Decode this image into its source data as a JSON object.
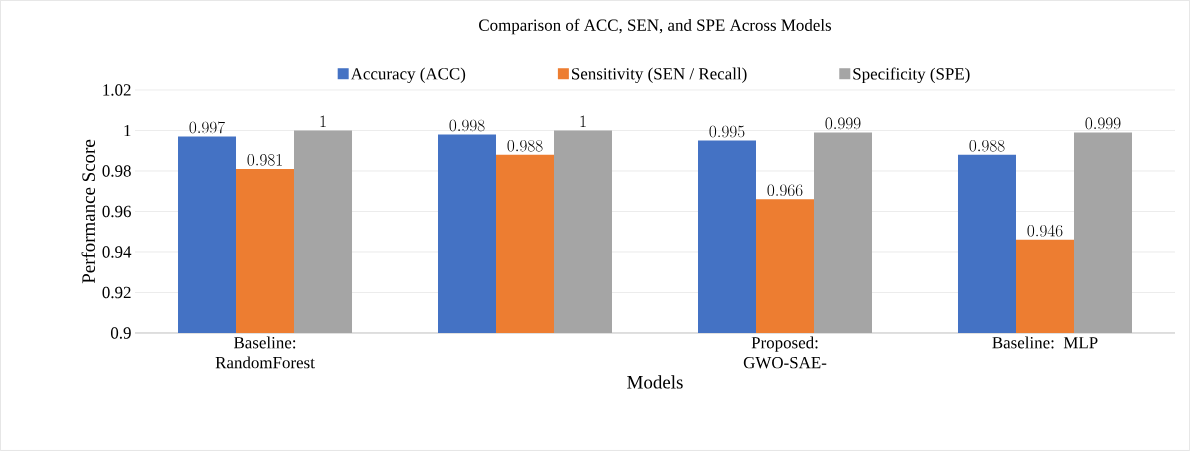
{
  "chart_data": {
    "type": "bar",
    "title": "Comparison of ACC, SEN, and SPE Across Models",
    "xlabel": "Models",
    "ylabel": "Performance Score",
    "categories": [
      "Baseline: RandomForest",
      null,
      "Proposed: GWO-SAE-",
      "Baseline: MLP"
    ],
    "series": [
      {
        "name": "Accuracy (ACC)",
        "color": "#4472c4",
        "values": [
          0.997,
          0.998,
          0.995,
          0.988
        ]
      },
      {
        "name": "Sensitivity (SEN / Recall)",
        "color": "#ed7d31",
        "values": [
          0.981,
          0.988,
          0.966,
          0.946
        ]
      },
      {
        "name": "Specificity (SPE)",
        "color": "#a5a5a5",
        "values": [
          1,
          1,
          0.999,
          0.999
        ]
      }
    ],
    "ylim": [
      0.9,
      1.02
    ],
    "yticks": [
      0.9,
      0.92,
      0.94,
      0.96,
      0.98,
      1,
      1.02
    ],
    "grid": "y",
    "legend": "top",
    "data_labels": true
  }
}
